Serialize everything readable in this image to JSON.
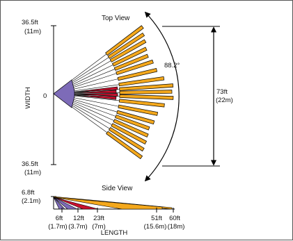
{
  "top_view": {
    "title": "Top View",
    "width_top_ft": "36.5ft",
    "width_top_m": "(11m)",
    "width_bottom_ft": "36.5ft",
    "width_bottom_m": "(11m)",
    "origin_label": "0",
    "axis_label": "WIDTH",
    "angle_label": "88.2°",
    "span_ft": "73ft",
    "span_m": "(22m)"
  },
  "side_view": {
    "title": "Side View",
    "height_ft": "6.8ft",
    "height_m": "(2.1m)",
    "axis_label": "LENGTH",
    "distance_labels": [
      {
        "ft": "6ft",
        "m": "(1.7m)"
      },
      {
        "ft": "12ft",
        "m": "(3.7m)"
      },
      {
        "ft": "23ft",
        "m": "(7m)"
      },
      {
        "ft": "51ft",
        "m": "(15.6m)"
      },
      {
        "ft": "60ft",
        "m": "(18m)"
      }
    ]
  },
  "colors": {
    "outer_zone": "#f4a81c",
    "mid_zone": "#c8102e",
    "near_zone": "#7d6bb8",
    "line": "#000000"
  }
}
